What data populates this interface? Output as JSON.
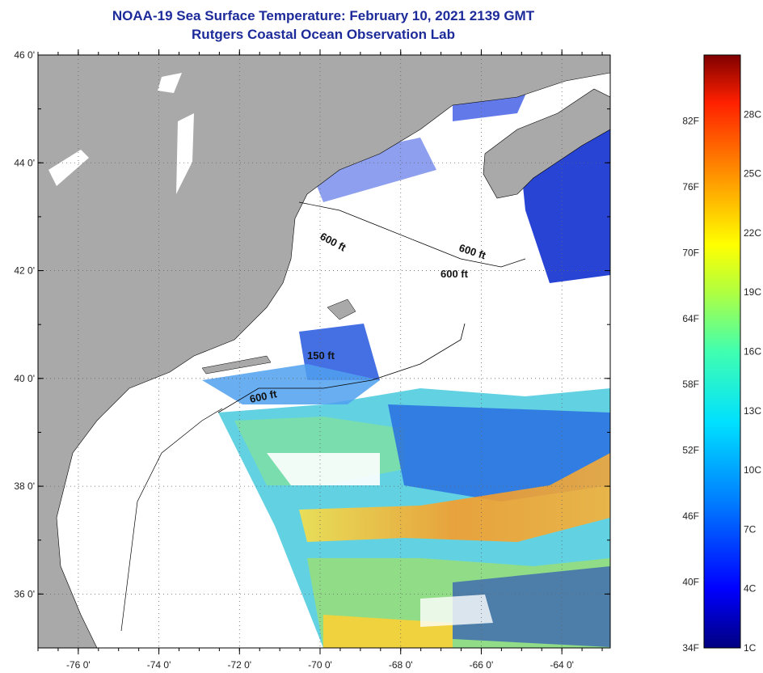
{
  "header": {
    "title": "NOAA-19 Sea Surface Temperature:  February 10, 2021 2139 GMT",
    "subtitle": "Rutgers Coastal Ocean Observation Lab"
  },
  "map": {
    "lat_range": [
      35,
      46
    ],
    "lon_range": [
      -77,
      -62.8
    ],
    "lat_ticks": [
      {
        "value": 46,
        "label": "46 0'"
      },
      {
        "value": 44,
        "label": "44 0'"
      },
      {
        "value": 42,
        "label": "42 0'"
      },
      {
        "value": 40,
        "label": "40 0'"
      },
      {
        "value": 38,
        "label": "38 0'"
      },
      {
        "value": 36,
        "label": "36 0'"
      }
    ],
    "lon_ticks": [
      {
        "value": -76,
        "label": "-76 0'"
      },
      {
        "value": -74,
        "label": "-74 0'"
      },
      {
        "value": -72,
        "label": "-72 0'"
      },
      {
        "value": -70,
        "label": "-70 0'"
      },
      {
        "value": -68,
        "label": "-68 0'"
      },
      {
        "value": -66,
        "label": "-66 0'"
      },
      {
        "value": -64,
        "label": "-64 0'"
      }
    ],
    "contour_labels": [
      "600 ft",
      "600 ft",
      "600 ft",
      "150 ft",
      "600 ft"
    ],
    "colors": {
      "land": "#a9a9a9",
      "ocean_nodata": "#ffffff",
      "border": "#000000"
    }
  },
  "colorbar": {
    "fahrenheit_labels": [
      "82F",
      "76F",
      "70F",
      "64F",
      "58F",
      "52F",
      "46F",
      "40F",
      "34F"
    ],
    "celsius_labels": [
      "28C",
      "25C",
      "22C",
      "19C",
      "16C",
      "13C",
      "10C",
      "7C",
      "4C",
      "1C"
    ],
    "colors_bottom_to_top": [
      "#000080",
      "#0000ff",
      "#0080ff",
      "#00e0ff",
      "#40ffb0",
      "#b0ff40",
      "#ffff00",
      "#ff9000",
      "#ff2000",
      "#800000"
    ]
  }
}
